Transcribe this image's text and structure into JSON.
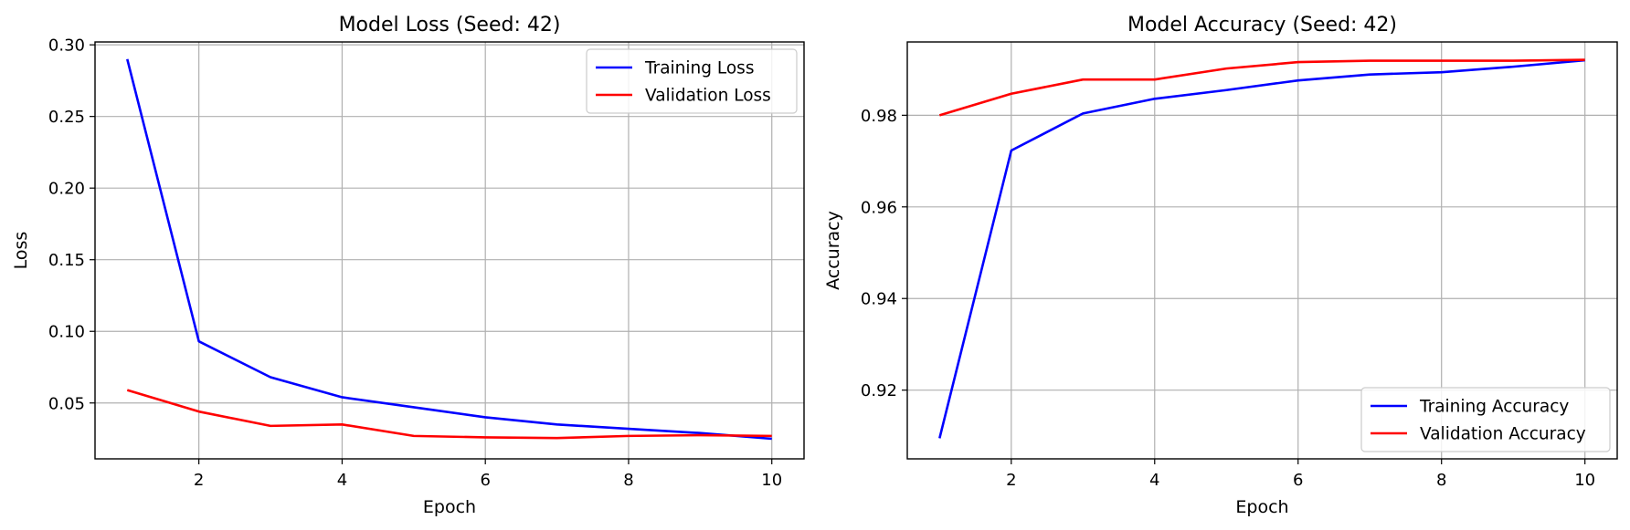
{
  "chart_data": [
    {
      "type": "line",
      "title": "Model Loss (Seed: 42)",
      "xlabel": "Epoch",
      "ylabel": "Loss",
      "x": [
        1,
        2,
        3,
        4,
        5,
        6,
        7,
        8,
        9,
        10
      ],
      "xlim": [
        0.55,
        10.45
      ],
      "ylim": [
        0.011,
        0.302
      ],
      "xticks": [
        2,
        4,
        6,
        8,
        10
      ],
      "xtick_labels": [
        "2",
        "4",
        "6",
        "8",
        "10"
      ],
      "yticks": [
        0.05,
        0.1,
        0.15,
        0.2,
        0.25,
        0.3
      ],
      "ytick_labels": [
        "0.05",
        "0.10",
        "0.15",
        "0.20",
        "0.25",
        "0.30"
      ],
      "grid": true,
      "legend_position": "upper right",
      "series": [
        {
          "name": "Training Loss",
          "color": "#0000ff",
          "values": [
            0.29,
            0.093,
            0.068,
            0.054,
            0.047,
            0.04,
            0.035,
            0.032,
            0.029,
            0.025
          ]
        },
        {
          "name": "Validation Loss",
          "color": "#ff0000",
          "values": [
            0.059,
            0.044,
            0.034,
            0.035,
            0.027,
            0.026,
            0.0255,
            0.027,
            0.0275,
            0.027
          ]
        }
      ]
    },
    {
      "type": "line",
      "title": "Model Accuracy (Seed: 42)",
      "xlabel": "Epoch",
      "ylabel": "Accuracy",
      "x": [
        1,
        2,
        3,
        4,
        5,
        6,
        7,
        8,
        9,
        10
      ],
      "xlim": [
        0.55,
        10.45
      ],
      "ylim": [
        0.905,
        0.996
      ],
      "xticks": [
        2,
        4,
        6,
        8,
        10
      ],
      "xtick_labels": [
        "2",
        "4",
        "6",
        "8",
        "10"
      ],
      "yticks": [
        0.92,
        0.94,
        0.96,
        0.98
      ],
      "ytick_labels": [
        "0.92",
        "0.94",
        "0.96",
        "0.98"
      ],
      "grid": true,
      "legend_position": "lower right",
      "series": [
        {
          "name": "Training Accuracy",
          "color": "#0000ff",
          "values": [
            0.9095,
            0.9723,
            0.9804,
            0.9836,
            0.9855,
            0.9876,
            0.9889,
            0.9894,
            0.9906,
            0.992
          ]
        },
        {
          "name": "Validation Accuracy",
          "color": "#ff0000",
          "values": [
            0.98,
            0.9847,
            0.9878,
            0.9878,
            0.9902,
            0.9916,
            0.9919,
            0.9919,
            0.9919,
            0.9921
          ]
        }
      ]
    }
  ]
}
